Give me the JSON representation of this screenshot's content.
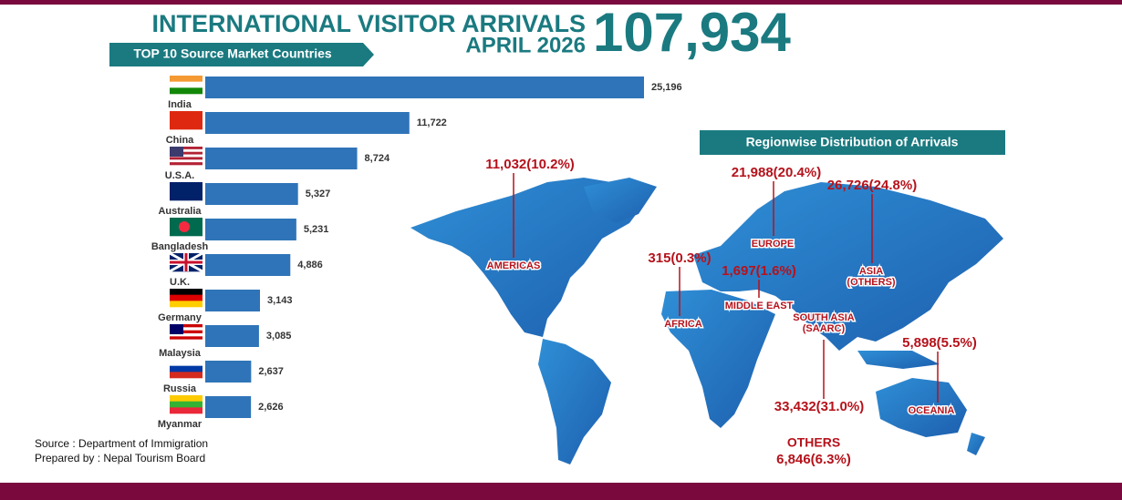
{
  "header": {
    "title": "INTERNATIONAL VISITOR ARRIVALS",
    "subtitle": "APRIL 2026",
    "total": "107,934"
  },
  "chart_data": {
    "type": "hbar",
    "title": "TOP 10 Source Market Countries",
    "categories": [
      "India",
      "China",
      "U.S.A.",
      "Australia",
      "Bangladesh",
      "U.K.",
      "Germany",
      "Malaysia",
      "Russia",
      "Myanmar"
    ],
    "values": [
      25196,
      11722,
      8724,
      5327,
      5231,
      4886,
      3143,
      3085,
      2637,
      2626
    ],
    "value_labels": [
      "25,196",
      "11,722",
      "8,724",
      "5,327",
      "5,231",
      "4,886",
      "3,143",
      "3,085",
      "2,637",
      "2,626"
    ],
    "color": "#2f74b8"
  },
  "regions": {
    "title": "Regionwise Distribution of Arrivals",
    "items": [
      {
        "name": [
          "AMERICAS"
        ],
        "value_label": "11,032(10.2%)"
      },
      {
        "name": [
          "EUROPE"
        ],
        "value_label": "21,988(20.4%)"
      },
      {
        "name": [
          "ASIA",
          "(OTHERS)"
        ],
        "value_label": "26,726(24.8%)"
      },
      {
        "name": [
          "AFRICA"
        ],
        "value_label": "315(0.3%)"
      },
      {
        "name": [
          "MIDDLE EAST"
        ],
        "value_label": "1,697(1.6%)"
      },
      {
        "name": [
          "SOUTH ASIA",
          "(SAARC)"
        ],
        "value_label": "33,432(31.0%)"
      },
      {
        "name": [
          "OCEANIA"
        ],
        "value_label": "5,898(5.5%)"
      },
      {
        "name": [
          "OTHERS"
        ],
        "value_label": "6,846(6.3%)"
      }
    ]
  },
  "source": "Source : Department of Immigration",
  "prepared_by": "Prepared by : Nepal Tourism Board"
}
